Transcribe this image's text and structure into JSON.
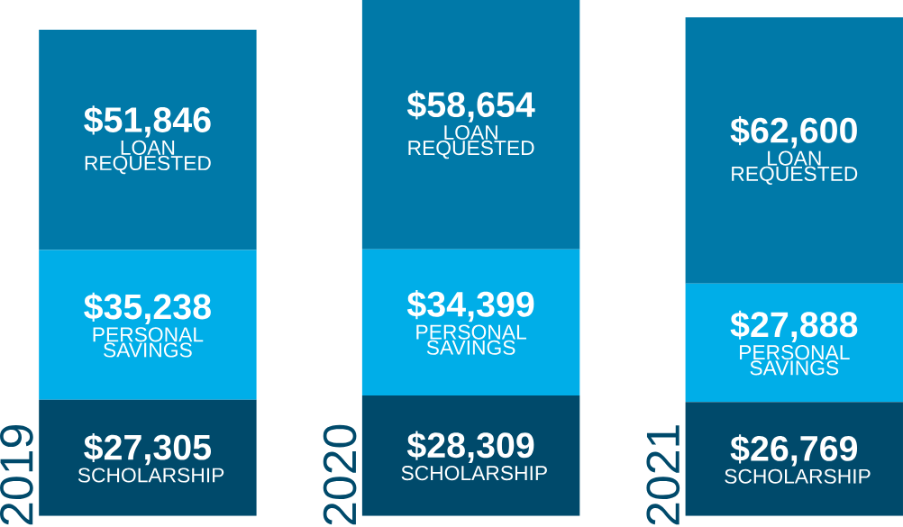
{
  "chart_data": {
    "type": "bar",
    "stacked": true,
    "categories": [
      "2019",
      "2020",
      "2021"
    ],
    "tick_labels": "x",
    "series": [
      {
        "name": "SCHOLARSHIP",
        "color": "#004a6b",
        "values": [
          27305,
          28309,
          26769
        ],
        "value_labels": [
          "$27,305",
          "$28,309",
          "$26,769"
        ]
      },
      {
        "name": "PERSONAL SAVINGS",
        "color": "#00aee8",
        "values": [
          35238,
          34399,
          27888
        ],
        "value_labels": [
          "$35,238",
          "$34,399",
          "$27,888"
        ]
      },
      {
        "name": "LOAN REQUESTED",
        "color": "#0079a8",
        "values": [
          51846,
          58654,
          62600
        ],
        "value_labels": [
          "$51,846",
          "$58,654",
          "$62,600"
        ]
      }
    ]
  }
}
